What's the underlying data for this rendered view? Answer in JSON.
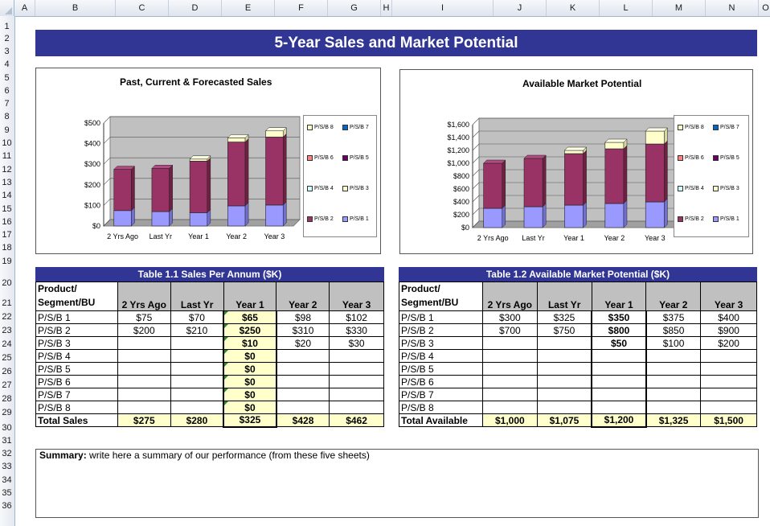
{
  "columns": [
    "A",
    "B",
    "C",
    "D",
    "E",
    "F",
    "G",
    "H",
    "I",
    "J",
    "K",
    "L",
    "M",
    "N",
    "O"
  ],
  "rows": [
    "1",
    "2",
    "3",
    "4",
    "5",
    "6",
    "7",
    "8",
    "9",
    "10",
    "11",
    "12",
    "13",
    "14",
    "15",
    "16",
    "17",
    "18",
    "19",
    "20",
    "21",
    "22",
    "23",
    "24",
    "25",
    "26",
    "27",
    "28",
    "29",
    "30",
    "31",
    "32",
    "33",
    "34",
    "35",
    "36"
  ],
  "title": "5-Year Sales and Market Potential",
  "colors": {
    "title_bg": "#313695",
    "ps1": "#9999ff",
    "ps2": "#993366",
    "ps8": "#ffffcc"
  },
  "chart1": {
    "title": "Past, Current & Forecasted Sales",
    "legend": [
      "P/S/B 8",
      "P/S/B 7",
      "P/S/B 6",
      "P/S/B 5",
      "P/S/B 4",
      "P/S/B 3",
      "P/S/B 2",
      "P/S/B 1"
    ]
  },
  "chart2": {
    "title": "Available Market Potential",
    "legend": [
      "P/S/B 8",
      "P/S/B 7",
      "P/S/B 6",
      "P/S/B 5",
      "P/S/B 4",
      "P/S/B 3",
      "P/S/B 2",
      "P/S/B 1"
    ]
  },
  "chart_data": [
    {
      "type": "bar",
      "stacked": true,
      "title": "Past, Current & Forecasted Sales",
      "categories": [
        "2 Yrs Ago",
        "Last Yr",
        "Year 1",
        "Year 2",
        "Year 3"
      ],
      "ytick_labels": [
        "$0",
        "$100",
        "$200",
        "$300",
        "$400",
        "$500"
      ],
      "ylim": [
        0,
        500
      ],
      "series": [
        {
          "name": "P/S/B 1",
          "values": [
            75,
            70,
            65,
            98,
            102
          ]
        },
        {
          "name": "P/S/B 2",
          "values": [
            200,
            210,
            250,
            310,
            330
          ]
        },
        {
          "name": "P/S/B 3",
          "values": [
            0,
            0,
            10,
            20,
            30
          ]
        }
      ]
    },
    {
      "type": "bar",
      "stacked": true,
      "title": "Available Market Potential",
      "categories": [
        "2 Yrs Ago",
        "Last Yr",
        "Year 1",
        "Year 2",
        "Year 3"
      ],
      "ytick_labels": [
        "$0",
        "$200",
        "$400",
        "$600",
        "$800",
        "$1,000",
        "$1,200",
        "$1,400",
        "$1,600"
      ],
      "ylim": [
        0,
        1600
      ],
      "series": [
        {
          "name": "P/S/B 1",
          "values": [
            300,
            325,
            350,
            375,
            400
          ]
        },
        {
          "name": "P/S/B 2",
          "values": [
            700,
            750,
            800,
            850,
            900
          ]
        },
        {
          "name": "P/S/B 3",
          "values": [
            0,
            0,
            50,
            100,
            200
          ]
        }
      ]
    }
  ],
  "table1": {
    "title": "Table 1.1 Sales Per Annum ($K)",
    "header": [
      "Product/\nSegment/BU",
      "2 Yrs Ago",
      "Last Yr",
      "Year 1",
      "Year 2",
      "Year 3"
    ],
    "rows": [
      [
        "P/S/B 1",
        "$75",
        "$70",
        "$65",
        "$98",
        "$102"
      ],
      [
        "P/S/B 2",
        "$200",
        "$210",
        "$250",
        "$310",
        "$330"
      ],
      [
        "P/S/B 3",
        "",
        "",
        "$10",
        "$20",
        "$30"
      ],
      [
        "P/S/B 4",
        "",
        "",
        "$0",
        "",
        ""
      ],
      [
        "P/S/B 5",
        "",
        "",
        "$0",
        "",
        ""
      ],
      [
        "P/S/B 6",
        "",
        "",
        "$0",
        "",
        ""
      ],
      [
        "P/S/B 7",
        "",
        "",
        "$0",
        "",
        ""
      ],
      [
        "P/S/B 8",
        "",
        "",
        "$0",
        "",
        ""
      ]
    ],
    "total": [
      "Total Sales",
      "$275",
      "$280",
      "$325",
      "$428",
      "$462"
    ]
  },
  "table2": {
    "title": "Table 1.2 Available Market Potential ($K)",
    "header": [
      "Product/\nSegment/BU",
      "2 Yrs Ago",
      "Last Yr",
      "Year 1",
      "Year 2",
      "Year 3"
    ],
    "rows": [
      [
        "P/S/B 1",
        "$300",
        "$325",
        "$350",
        "$375",
        "$400"
      ],
      [
        "P/S/B 2",
        "$700",
        "$750",
        "$800",
        "$850",
        "$900"
      ],
      [
        "P/S/B 3",
        "",
        "",
        "$50",
        "$100",
        "$200"
      ],
      [
        "P/S/B 4",
        "",
        "",
        "",
        "",
        ""
      ],
      [
        "P/S/B 5",
        "",
        "",
        "",
        "",
        ""
      ],
      [
        "P/S/B 6",
        "",
        "",
        "",
        "",
        ""
      ],
      [
        "P/S/B 7",
        "",
        "",
        "",
        "",
        ""
      ],
      [
        "P/S/B 8",
        "",
        "",
        "",
        "",
        ""
      ]
    ],
    "total": [
      "Total Available",
      "$1,000",
      "$1,075",
      "$1,200",
      "$1,325",
      "$1,500"
    ]
  },
  "summary": {
    "label": "Summary:",
    "text": "write here a summary of our performance (from these five sheets)"
  }
}
